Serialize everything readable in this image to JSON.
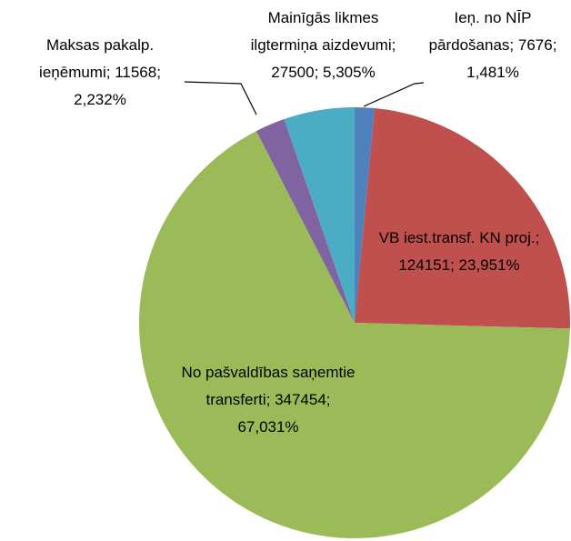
{
  "chart_data": {
    "type": "pie",
    "categories": [
      "Ieņ. no NĪP pārdošanas",
      "VB iest.transf. KN proj.",
      "No pašvaldības saņemtie transferti",
      "Maksas pakalp. ieņēmumi",
      "Mainīgās likmes ilgtermiņa aizdevumi"
    ],
    "values": [
      7676,
      124151,
      347454,
      11568,
      27500
    ],
    "percent_labels": [
      "1,481%",
      "23,951%",
      "67,031%",
      "2,232%",
      "5,305%"
    ],
    "label_separator": "; ",
    "colors": [
      "#4f81bd",
      "#c0504d",
      "#9bbb59",
      "#8064a2",
      "#4bacc6"
    ]
  }
}
